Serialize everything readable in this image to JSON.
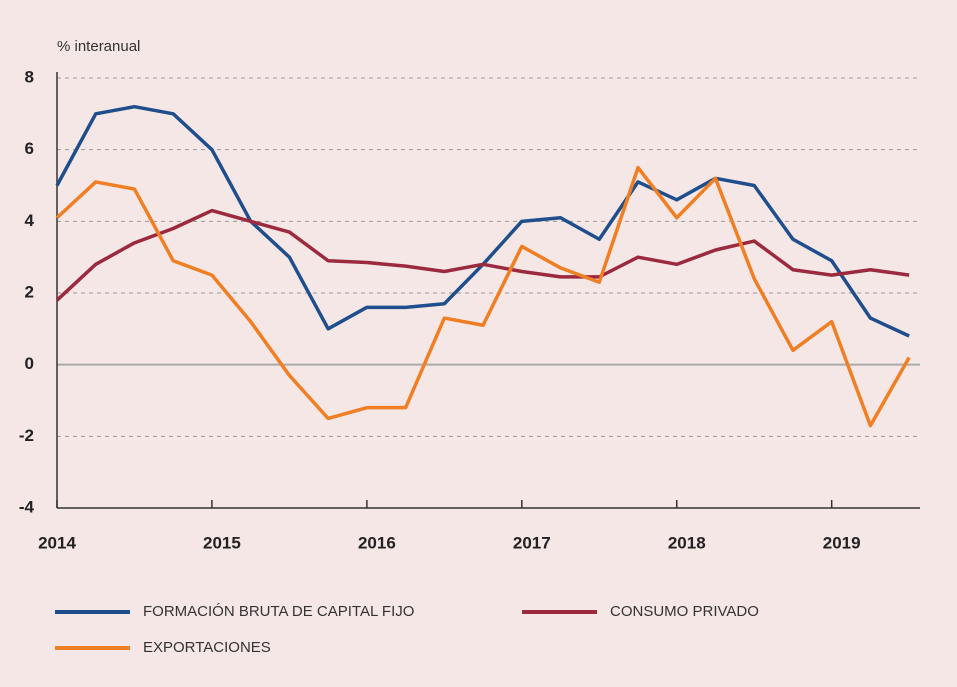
{
  "chart_data": {
    "type": "line",
    "y_label": "% interanual",
    "x": [
      2014,
      2014.25,
      2014.5,
      2014.75,
      2015,
      2015.25,
      2015.5,
      2015.75,
      2016,
      2016.25,
      2016.5,
      2016.75,
      2017,
      2017.25,
      2017.5,
      2017.75,
      2018,
      2018.25,
      2018.5,
      2018.75,
      2019,
      2019.25,
      2019.5
    ],
    "series": [
      {
        "name": "FORMACIÓN BRUTA DE CAPITAL FIJO",
        "color": "#1f4e8c",
        "values": [
          5.0,
          7.0,
          7.2,
          7.0,
          6.0,
          4.0,
          3.0,
          1.0,
          1.6,
          1.6,
          1.7,
          2.8,
          4.0,
          4.1,
          3.5,
          5.1,
          4.6,
          5.2,
          5.0,
          3.5,
          2.9,
          1.3,
          0.8
        ]
      },
      {
        "name": "CONSUMO PRIVADO",
        "color": "#9b2a3f",
        "values": [
          1.8,
          2.8,
          3.4,
          3.8,
          4.3,
          4.0,
          3.7,
          2.9,
          2.85,
          2.75,
          2.6,
          2.8,
          2.6,
          2.45,
          2.45,
          3.0,
          2.8,
          3.2,
          3.45,
          2.65,
          2.5,
          2.65,
          2.5
        ]
      },
      {
        "name": "EXPORTACIONES",
        "color": "#f07f24",
        "values": [
          4.1,
          5.1,
          4.9,
          2.9,
          2.5,
          1.2,
          -0.3,
          -1.5,
          -1.2,
          -1.2,
          1.3,
          1.1,
          3.3,
          2.7,
          2.3,
          5.5,
          4.1,
          5.2,
          2.4,
          0.4,
          1.2,
          -1.7,
          0.2
        ]
      }
    ],
    "xlim": [
      2014,
      2019.57
    ],
    "xticks": [
      2014,
      2015,
      2016,
      2017,
      2018,
      2019
    ],
    "ylim": [
      -4,
      8
    ],
    "yticks": [
      -4,
      -2,
      0,
      2,
      4,
      6,
      8
    ],
    "grid": true
  }
}
